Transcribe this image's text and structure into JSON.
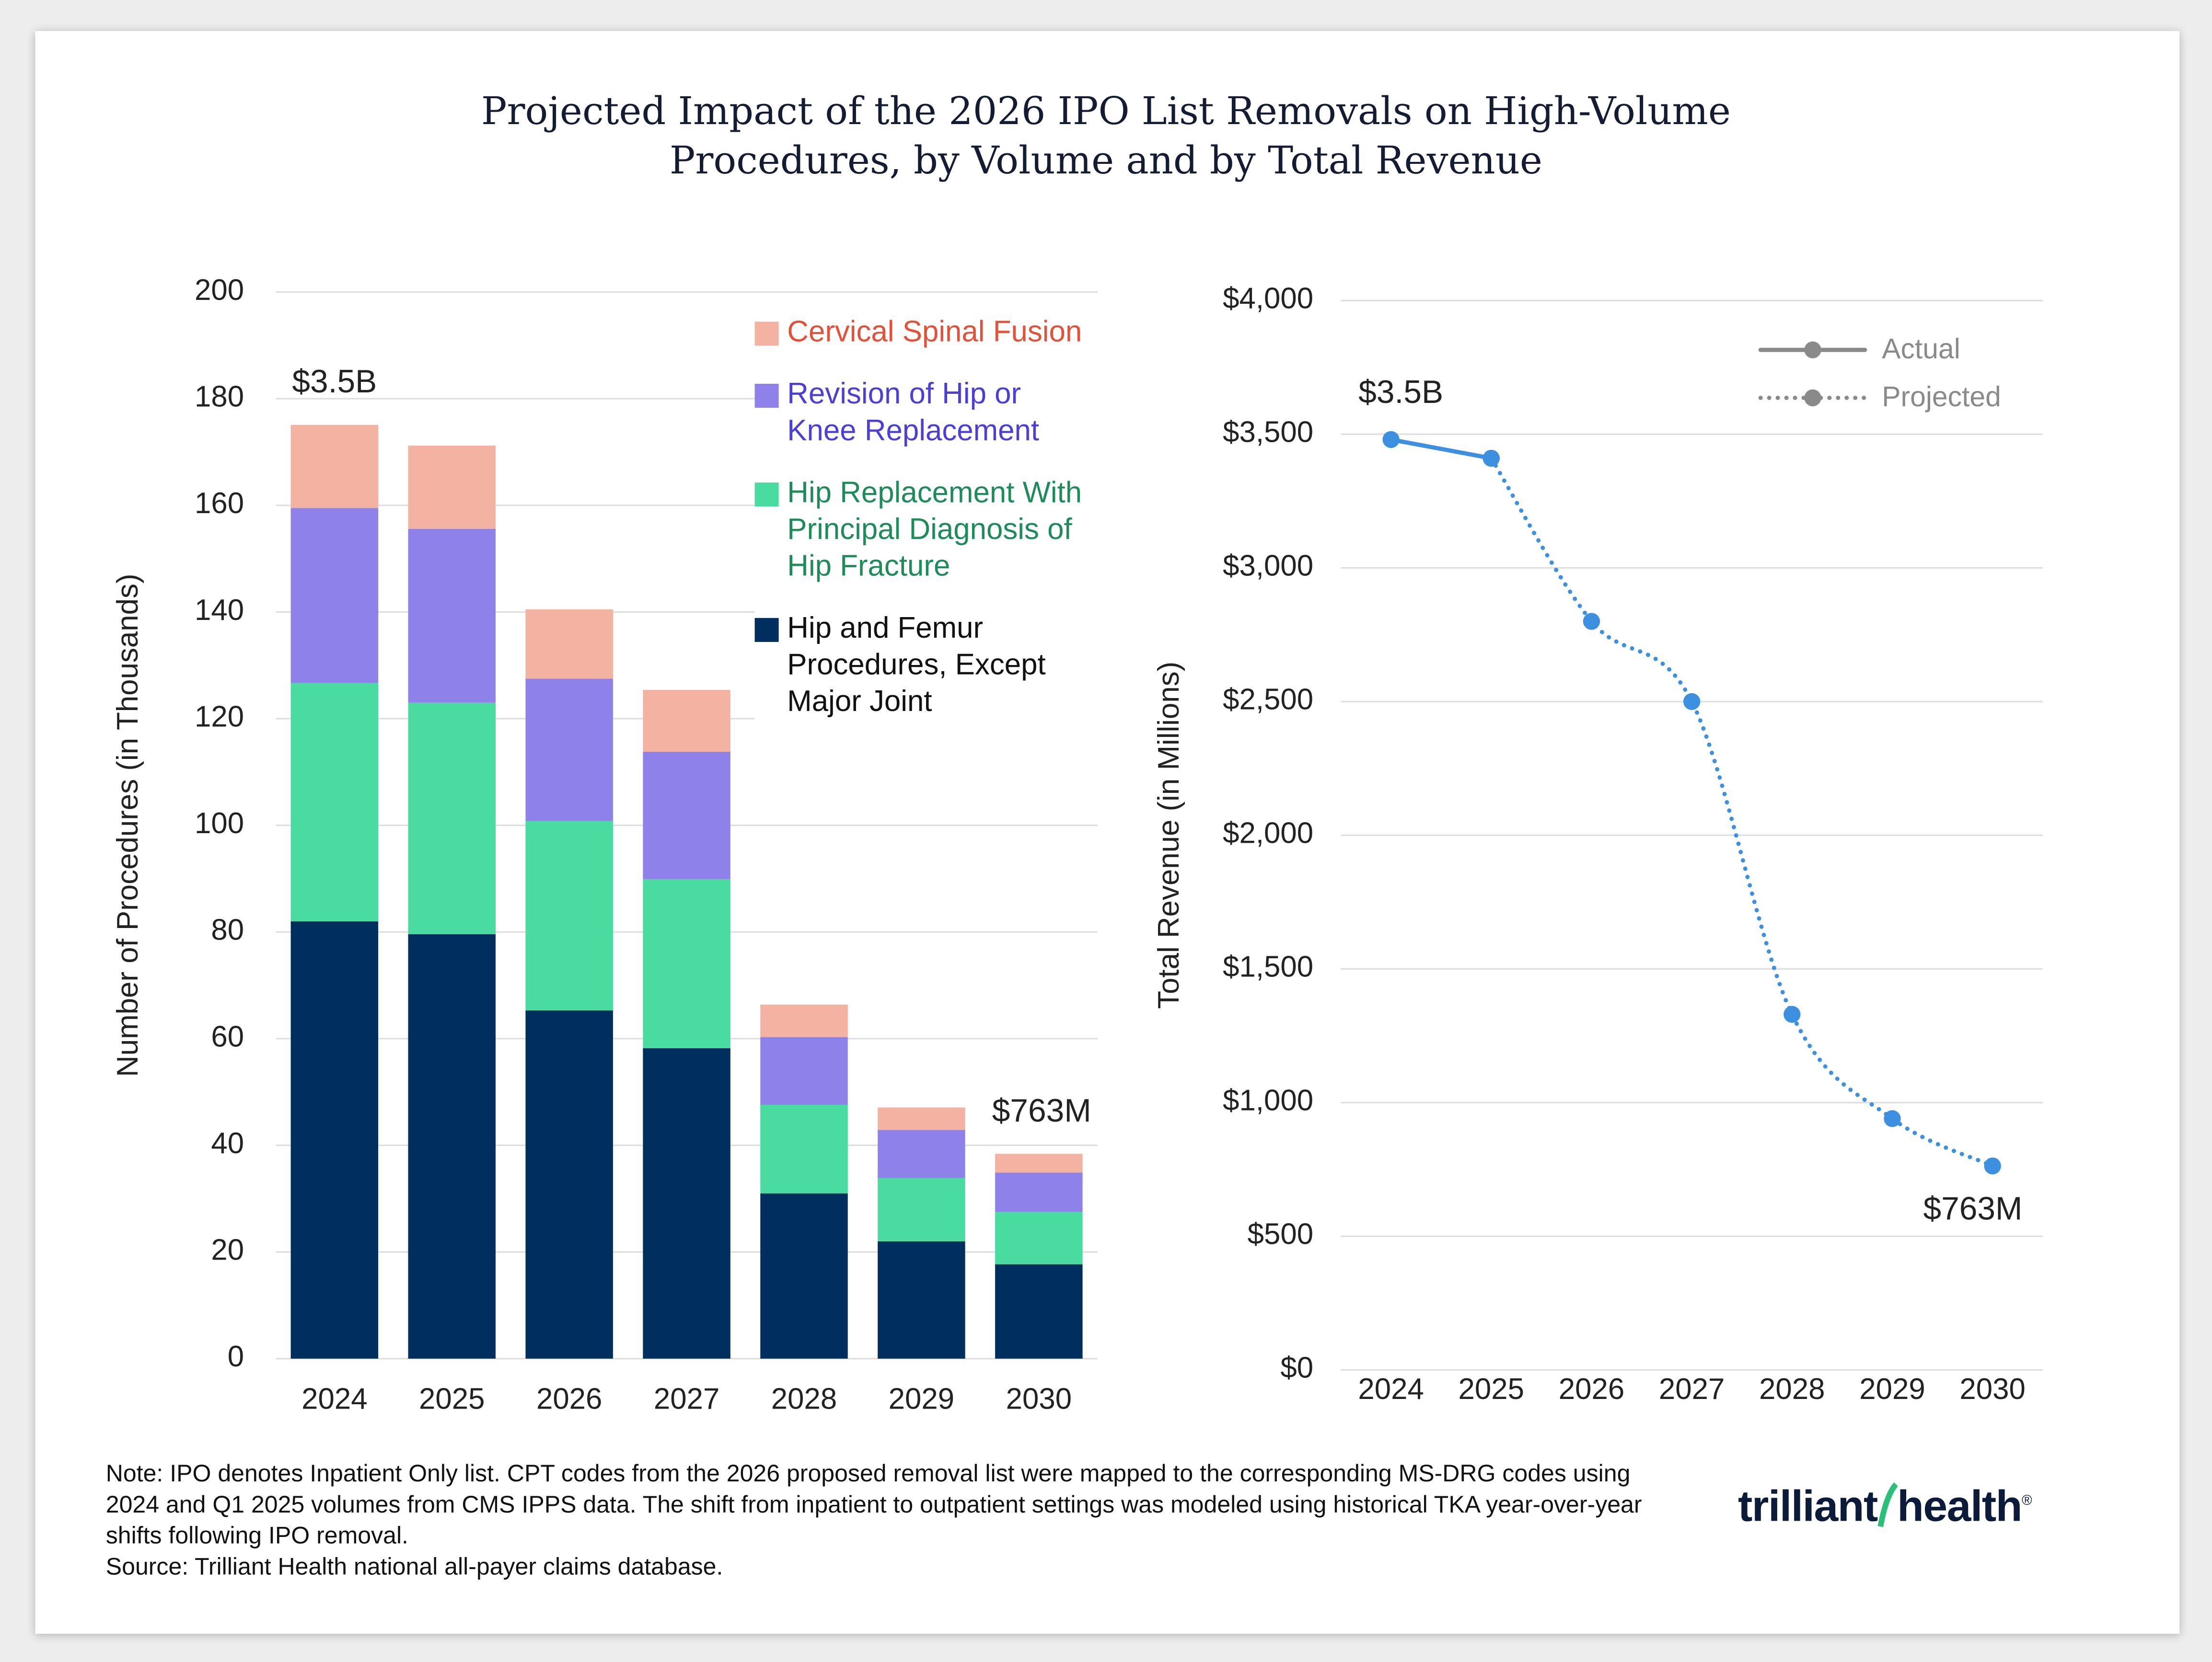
{
  "title": "Projected Impact of the 2026 IPO List Removals on High-Volume Procedures, by Volume and by Total Revenue",
  "chart_data": [
    {
      "type": "stacked_bar",
      "ylabel": "Number of Procedures (in Thousands)",
      "categories": [
        "2024",
        "2025",
        "2026",
        "2027",
        "2028",
        "2029",
        "2030"
      ],
      "series": [
        {
          "name": "Hip and Femur Procedures, Except Major Joint",
          "color": "#002f5f",
          "values": [
            82.0,
            79.6,
            65.3,
            58.2,
            31.0,
            22.0,
            17.7
          ]
        },
        {
          "name": "Hip Replacement With Principal Diagnosis of Hip Fracture",
          "color": "#4adba1",
          "values": [
            44.7,
            43.4,
            35.5,
            31.7,
            16.6,
            11.9,
            9.8
          ]
        },
        {
          "name": "Revision of Hip or Knee Replacement",
          "color": "#8e82ea",
          "values": [
            32.8,
            32.6,
            26.7,
            23.9,
            12.7,
            9.0,
            7.4
          ]
        },
        {
          "name": "Cervical Spinal Fusion",
          "color": "#f4b2a2",
          "values": [
            15.6,
            15.6,
            13.0,
            11.6,
            6.1,
            4.2,
            3.5
          ]
        }
      ],
      "annotations": [
        "$3.5B",
        "$763M"
      ],
      "ylim": [
        0,
        200
      ],
      "yticks": [
        0,
        20,
        40,
        60,
        80,
        100,
        120,
        140,
        160,
        180,
        200
      ],
      "grid": true
    },
    {
      "type": "line",
      "ylabel": "Total Revenue (in Millions)",
      "categories": [
        "2024",
        "2025",
        "2026",
        "2027",
        "2028",
        "2029",
        "2030"
      ],
      "series": [
        {
          "name": "Actual",
          "color": "#3d8fe0",
          "style": "solid",
          "values": [
            3480,
            3410,
            null,
            null,
            null,
            null,
            null
          ],
          "value_labels": [
            "$3.5B",
            null,
            null,
            null,
            null,
            null,
            null
          ]
        },
        {
          "name": "Projected",
          "color": "#3d8fe0",
          "style": "dotted",
          "values": [
            null,
            3410,
            2800,
            2500,
            1330,
            940,
            763
          ],
          "value_labels": [
            null,
            null,
            null,
            null,
            null,
            null,
            "$763M"
          ]
        }
      ],
      "ylim": [
        0,
        4000
      ],
      "yticks": [
        {
          "value": 0,
          "label": "$0"
        },
        {
          "value": 500,
          "label": "$500"
        },
        {
          "value": 1000,
          "label": "$1,000"
        },
        {
          "value": 1500,
          "label": "$1,500"
        },
        {
          "value": 2000,
          "label": "$2,000"
        },
        {
          "value": 2500,
          "label": "$2,500"
        },
        {
          "value": 3000,
          "label": "$3,000"
        },
        {
          "value": 3500,
          "label": "$3,500"
        },
        {
          "value": 4000,
          "label": "$4,000"
        }
      ],
      "grid": true
    }
  ],
  "note": "Note: IPO denotes Inpatient Only list. CPT codes from the 2026 proposed removal list were mapped to the corresponding MS-DRG codes using 2024 and Q1 2025 volumes from CMS IPPS data. The shift from inpatient to outpatient settings was modeled using historical TKA year-over-year shifts following IPO removal.",
  "source": "Source: Trilliant Health national all-payer claims database.",
  "logo": [
    "trilliant",
    "health"
  ]
}
